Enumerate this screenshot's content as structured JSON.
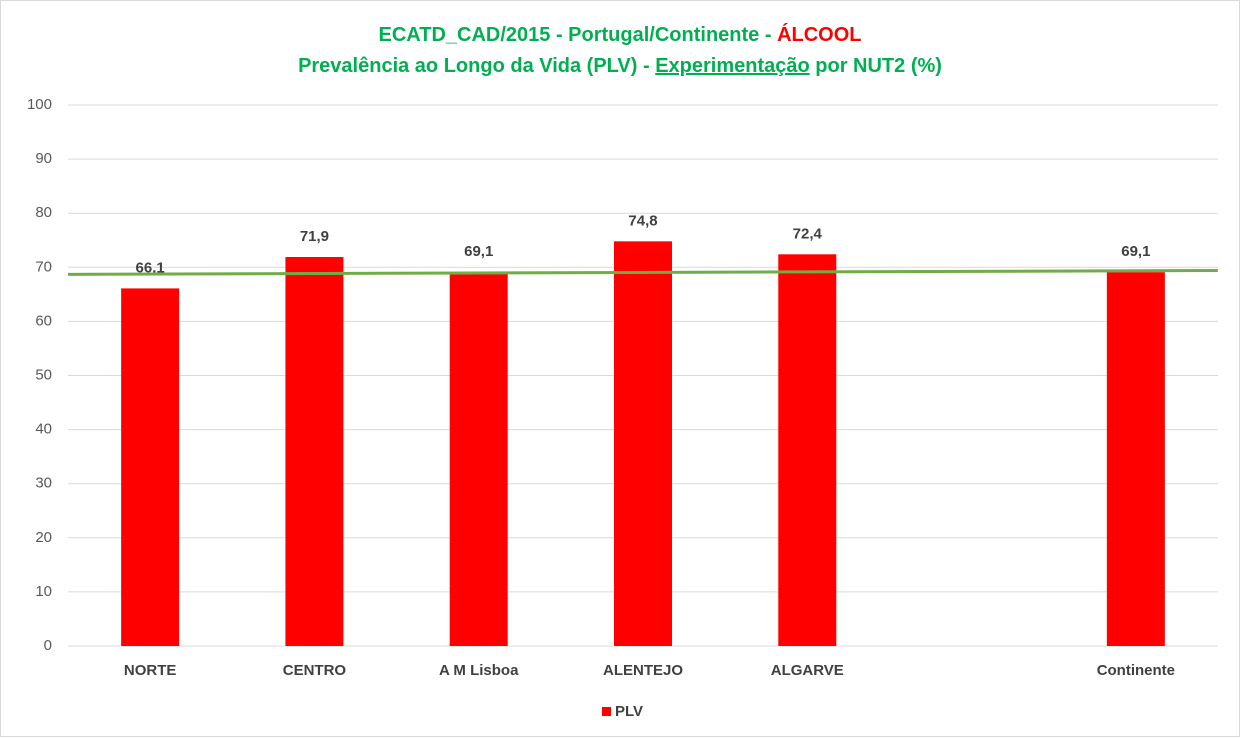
{
  "chart_data": {
    "type": "bar",
    "title": [
      "ECATD_CAD/2015 - Portugal/Continente - ",
      "ÁLCOOL"
    ],
    "subtitle": [
      "Prevalência ao Longo da Vida (PLV) -  ",
      "Experimentação",
      " por NUT2 (%)"
    ],
    "categories": [
      "NORTE",
      "CENTRO",
      "A M Lisboa",
      "ALENTEJO",
      "ALGARVE",
      null,
      "Continente"
    ],
    "series": [
      {
        "name": "PLV",
        "color": "#ff0000",
        "values": [
          66.1,
          71.9,
          69.1,
          74.8,
          72.4,
          null,
          69.1
        ],
        "value_labels": [
          "66,1",
          "71,9",
          "69,1",
          "74,8",
          "72,4",
          null,
          "69,1"
        ]
      }
    ],
    "trendline": {
      "color": "#70ad47",
      "values": [
        68.7,
        69.4
      ]
    },
    "ylim": [
      0,
      100
    ],
    "yticks": [
      0,
      10,
      20,
      30,
      40,
      50,
      60,
      70,
      80,
      90,
      100
    ],
    "grid": true,
    "legend": "bottom"
  }
}
